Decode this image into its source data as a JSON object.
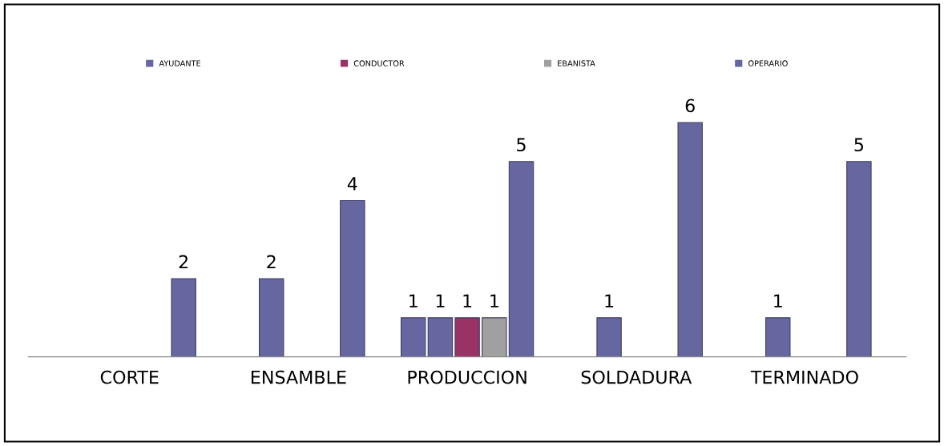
{
  "chart_data": {
    "type": "bar",
    "categories": [
      "CORTE",
      "ENSAMBLE",
      "PRODUCCION",
      "SOLDADURA",
      "TERMINADO"
    ],
    "series": [
      {
        "color": "#6666a0",
        "values": [
          null,
          null,
          1,
          null,
          null
        ]
      },
      {
        "name": "AYUDANTE",
        "color": "#6666a0",
        "values": [
          null,
          2,
          1,
          1,
          1
        ]
      },
      {
        "name": "CONDUCTOR",
        "color": "#993366",
        "values": [
          null,
          null,
          1,
          null,
          null
        ]
      },
      {
        "name": "EBANISTA",
        "color": "#a0a0a0",
        "values": [
          null,
          null,
          1,
          null,
          null
        ]
      },
      {
        "name": "OPERARIO",
        "color": "#6666a0",
        "values": [
          2,
          4,
          5,
          6,
          5
        ]
      }
    ],
    "data_labels": true,
    "legend": "top",
    "grid": false
  }
}
